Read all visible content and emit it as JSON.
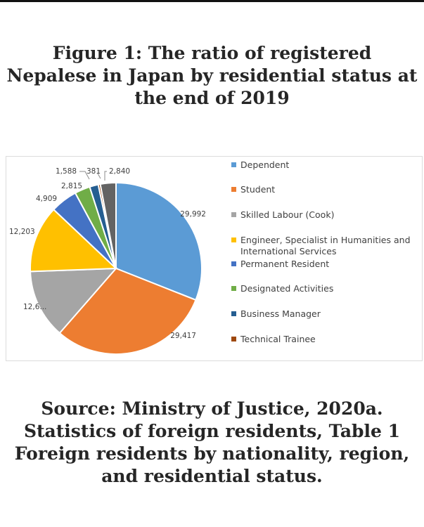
{
  "figure": {
    "title_lines": [
      "Figure 1: The ratio of registered",
      "Nepalese in Japan by residential status at",
      "the end of 2019"
    ]
  },
  "source": {
    "lines": [
      "Source: Ministry of Justice, 2020a.",
      "Statistics of foreign residents, Table 1",
      "Foreign residents by nationality, region,",
      "and residential status."
    ]
  },
  "chart_data": {
    "type": "pie",
    "title": "",
    "legend_position": "right",
    "slices": [
      {
        "name": "Dependent",
        "value": 29992,
        "label": "29,992",
        "color": "#5b9bd5"
      },
      {
        "name": "Student",
        "value": 29417,
        "label": "29,417",
        "color": "#ed7d31"
      },
      {
        "name": "Skilled Labour (Cook)",
        "value": 12600,
        "label": "12,6...",
        "color": "#a5a5a5"
      },
      {
        "name": "Engineer, Specialist in Humanities and International Services",
        "value": 12203,
        "label": "12,203",
        "color": "#ffc000"
      },
      {
        "name": "Permanent Resident",
        "value": 4909,
        "label": "4,909",
        "color": "#4472c4"
      },
      {
        "name": "Designated Activities",
        "value": 2815,
        "label": "2,815",
        "color": "#70ad47"
      },
      {
        "name": "Business Manager",
        "value": 1588,
        "label": "1,588",
        "color": "#255e91"
      },
      {
        "name": "Technical Trainee",
        "value": 381,
        "label": "381",
        "color": "#9e480e"
      },
      {
        "name": "",
        "value": 2840,
        "label": "2,840",
        "color": "#636363"
      }
    ]
  }
}
